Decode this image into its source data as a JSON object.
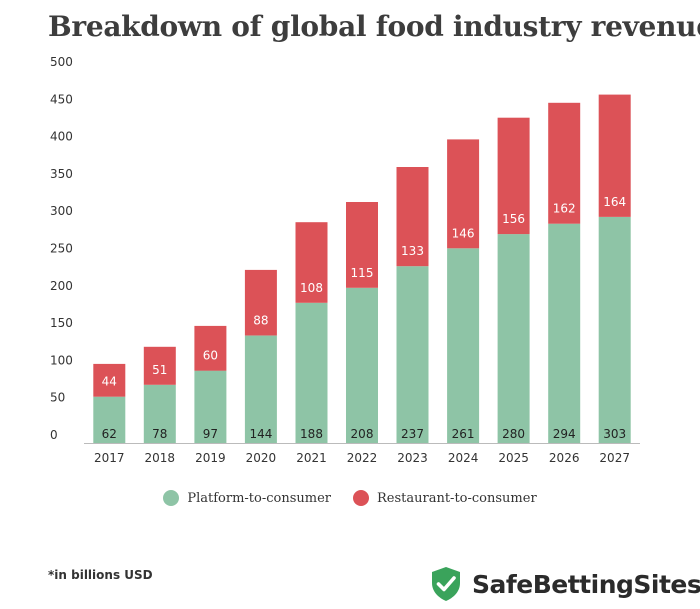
{
  "title": "Breakdown of global food industry revenue",
  "note": "*in billions USD",
  "brand": {
    "name": "SafeBettingSites",
    "icon": "shield-check-icon"
  },
  "colors": {
    "platform": "#8ec4a6",
    "restaurant": "#dc5257",
    "brand_shield": "#3aa35b"
  },
  "chart_data": {
    "type": "bar",
    "stacked": true,
    "categories": [
      "2017",
      "2018",
      "2019",
      "2020",
      "2021",
      "2022",
      "2023",
      "2024",
      "2025",
      "2026",
      "2027"
    ],
    "series": [
      {
        "name": "Platform-to-consumer",
        "values": [
          62,
          78,
          97,
          144,
          188,
          208,
          237,
          261,
          280,
          294,
          303
        ]
      },
      {
        "name": "Restaurant-to-consumer",
        "values": [
          44,
          51,
          60,
          88,
          108,
          115,
          133,
          146,
          156,
          162,
          164
        ]
      }
    ],
    "yticks": [
      0,
      50,
      100,
      150,
      200,
      250,
      300,
      350,
      400,
      450,
      500
    ],
    "ylim": [
      0,
      500
    ],
    "grid": false,
    "legend": "bottom-center"
  }
}
